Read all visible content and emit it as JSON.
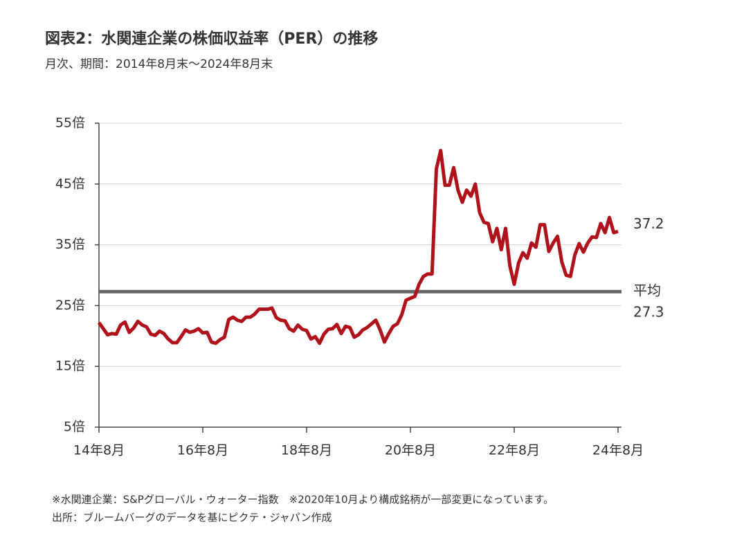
{
  "chart_data": {
    "type": "line",
    "title": "図表2：水関連企業の株価収益率（PER）の推移",
    "subtitle": "月次、期間：2014年8月末～2024年8月末",
    "categories": [
      "14年8月",
      null,
      null,
      null,
      null,
      null,
      null,
      null,
      null,
      null,
      null,
      null,
      null,
      null,
      null,
      null,
      null,
      null,
      null,
      null,
      null,
      null,
      null,
      null,
      "16年8月",
      null,
      null,
      null,
      null,
      null,
      null,
      null,
      null,
      null,
      null,
      null,
      null,
      null,
      null,
      null,
      null,
      null,
      null,
      null,
      null,
      null,
      null,
      null,
      "18年8月",
      null,
      null,
      null,
      null,
      null,
      null,
      null,
      null,
      null,
      null,
      null,
      null,
      null,
      null,
      null,
      null,
      null,
      null,
      null,
      null,
      null,
      null,
      null,
      "20年8月",
      null,
      null,
      null,
      null,
      null,
      null,
      null,
      null,
      null,
      null,
      null,
      null,
      null,
      null,
      null,
      null,
      null,
      null,
      null,
      null,
      null,
      null,
      null,
      "22年8月",
      null,
      null,
      null,
      null,
      null,
      null,
      null,
      null,
      null,
      null,
      null,
      null,
      null,
      null,
      null,
      null,
      null,
      null,
      null,
      null,
      null,
      null,
      null,
      "24年8月"
    ],
    "series": [
      {
        "name": "水関連企業",
        "color": "#b0121b",
        "values": [
          22.2,
          21.2,
          20.2,
          20.4,
          20.3,
          21.8,
          22.3,
          20.6,
          21.3,
          22.4,
          21.8,
          21.5,
          20.3,
          20.1,
          20.8,
          20.4,
          19.5,
          18.9,
          18.9,
          19.9,
          21.0,
          20.6,
          20.8,
          21.2,
          20.5,
          20.6,
          19.0,
          18.8,
          19.4,
          19.8,
          22.7,
          23.1,
          22.6,
          22.4,
          23.1,
          23.1,
          23.6,
          24.4,
          24.4,
          24.4,
          24.6,
          23.0,
          22.6,
          22.5,
          21.2,
          20.8,
          21.8,
          21.1,
          20.9,
          19.5,
          19.9,
          18.8,
          20.3,
          21.1,
          21.2,
          21.9,
          20.4,
          21.6,
          21.4,
          19.8,
          20.2,
          21.0,
          21.4,
          22.0,
          22.6,
          21.0,
          19.0,
          20.4,
          21.6,
          22.0,
          23.5,
          25.9,
          26.2,
          26.5,
          28.5,
          29.8,
          30.2,
          30.2,
          47.5,
          50.5,
          44.8,
          44.8,
          47.7,
          44.0,
          42.0,
          44.0,
          43.0,
          45.0,
          40.3,
          38.7,
          38.5,
          35.5,
          37.7,
          34.2,
          37.7,
          31.5,
          28.5,
          32.0,
          33.7,
          32.8,
          35.3,
          34.6,
          38.3,
          38.3,
          33.9,
          35.3,
          36.4,
          32.2,
          30.0,
          29.8,
          33.3,
          35.2,
          33.8,
          35.3,
          36.3,
          36.2,
          38.5,
          37.0,
          39.5,
          37.0,
          37.2
        ]
      }
    ],
    "average": {
      "label": "平均",
      "value": 27.3,
      "color": "#666666"
    },
    "ylim": [
      5,
      55
    ],
    "yticks": [
      {
        "value": 5,
        "label": "5倍"
      },
      {
        "value": 15,
        "label": "15倍"
      },
      {
        "value": 25,
        "label": "25倍"
      },
      {
        "value": 35,
        "label": "35倍"
      },
      {
        "value": 45,
        "label": "45倍"
      },
      {
        "value": 55,
        "label": "55倍"
      }
    ],
    "grid": true,
    "notes": [
      "※水関連企業：S&Pグローバル・ウォーター指数　※2020年10月より構成銘柄が一部変更になっています。",
      "出所：ブルームバーグのデータを基にピクテ・ジャパン作成"
    ]
  }
}
